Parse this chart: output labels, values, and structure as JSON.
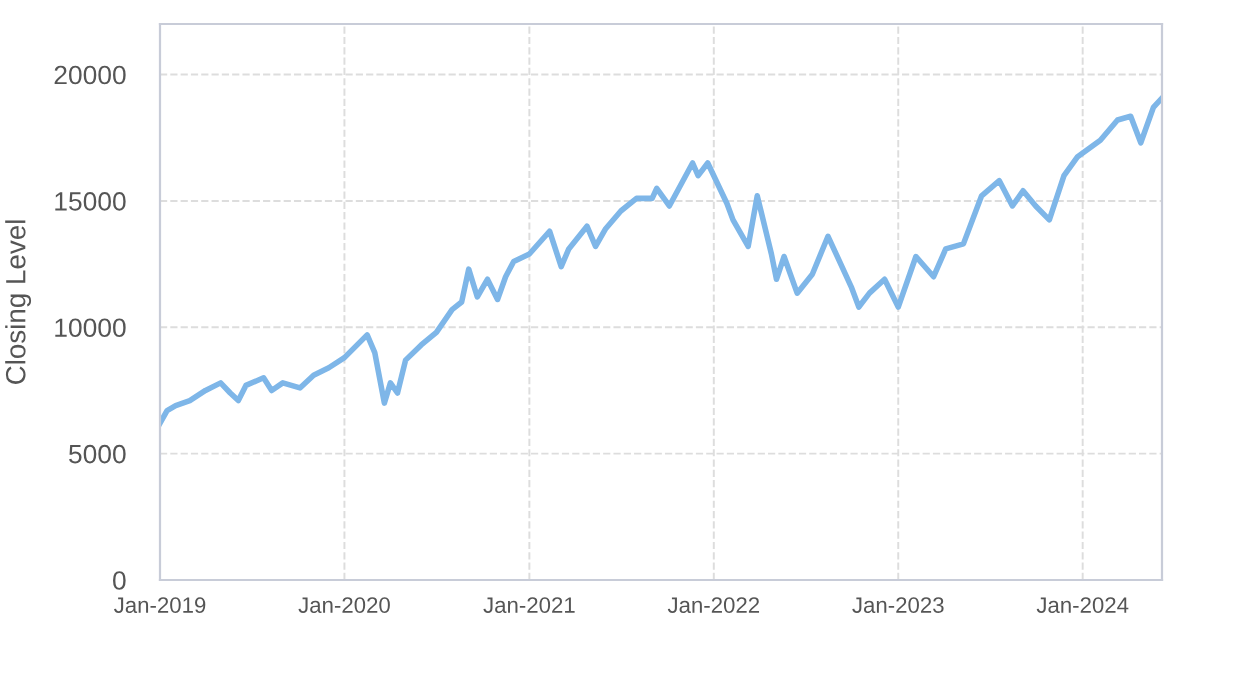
{
  "chart_data": {
    "type": "line",
    "ylabel": "Closing Level",
    "x": [
      "2019-01-01",
      "2019-01-15",
      "2019-02-01",
      "2019-03-01",
      "2019-04-01",
      "2019-05-01",
      "2019-05-20",
      "2019-06-05",
      "2019-06-20",
      "2019-07-25",
      "2019-08-10",
      "2019-09-01",
      "2019-10-05",
      "2019-11-01",
      "2019-12-01",
      "2020-01-01",
      "2020-02-15",
      "2020-03-01",
      "2020-03-20",
      "2020-04-01",
      "2020-04-15",
      "2020-05-01",
      "2020-06-01",
      "2020-07-01",
      "2020-08-01",
      "2020-08-20",
      "2020-09-03",
      "2020-09-20",
      "2020-10-10",
      "2020-10-30",
      "2020-11-15",
      "2020-12-01",
      "2021-01-01",
      "2021-02-10",
      "2021-03-05",
      "2021-03-20",
      "2021-04-25",
      "2021-05-12",
      "2021-06-01",
      "2021-07-01",
      "2021-08-01",
      "2021-09-01",
      "2021-09-10",
      "2021-10-05",
      "2021-11-20",
      "2021-12-01",
      "2021-12-20",
      "2022-01-27",
      "2022-02-08",
      "2022-03-10",
      "2022-03-28",
      "2022-04-25",
      "2022-05-05",
      "2022-05-20",
      "2022-06-15",
      "2022-07-15",
      "2022-08-15",
      "2022-09-30",
      "2022-10-15",
      "2022-11-05",
      "2022-12-05",
      "2023-01-01",
      "2023-02-05",
      "2023-03-12",
      "2023-04-05",
      "2023-05-10",
      "2023-06-15",
      "2023-07-20",
      "2023-08-15",
      "2023-09-05",
      "2023-09-30",
      "2023-10-27",
      "2023-11-25",
      "2023-12-22",
      "2024-02-05",
      "2024-03-10",
      "2024-04-05",
      "2024-04-25",
      "2024-05-20",
      "2024-06-05"
    ],
    "series": [
      {
        "color": "#7eb6e8",
        "values": [
          6200,
          6700,
          6900,
          7100,
          7500,
          7800,
          7400,
          7100,
          7700,
          8000,
          7500,
          7800,
          7600,
          8100,
          8400,
          8800,
          9700,
          9000,
          7000,
          7800,
          7400,
          8700,
          9300,
          9800,
          10700,
          11000,
          12300,
          11200,
          11900,
          11100,
          12000,
          12600,
          12900,
          13800,
          12400,
          13100,
          14000,
          13200,
          13900,
          14600,
          15100,
          15100,
          15500,
          14800,
          16500,
          16000,
          16500,
          14900,
          14250,
          13200,
          15200,
          12900,
          11900,
          12800,
          11350,
          12100,
          13600,
          11600,
          10800,
          11350,
          11900,
          10800,
          12800,
          12000,
          13100,
          13300,
          15200,
          15800,
          14800,
          15400,
          14800,
          14250,
          16000,
          16750,
          17400,
          18200,
          18350,
          17300,
          18700,
          19050
        ]
      }
    ],
    "xlim": [
      "2019-01-01",
      "2024-06-06"
    ],
    "xticks": [
      {
        "value": "2019-01-01",
        "label": "Jan-2019"
      },
      {
        "value": "2020-01-01",
        "label": "Jan-2020"
      },
      {
        "value": "2021-01-01",
        "label": "Jan-2021"
      },
      {
        "value": "2022-01-01",
        "label": "Jan-2022"
      },
      {
        "value": "2023-01-01",
        "label": "Jan-2023"
      },
      {
        "value": "2024-01-01",
        "label": "Jan-2024"
      }
    ],
    "ylim": [
      0,
      22000
    ],
    "yticks": [
      0,
      5000,
      10000,
      15000,
      20000
    ],
    "grid": true,
    "legend": false,
    "marker": "none",
    "line_style": "solid"
  }
}
